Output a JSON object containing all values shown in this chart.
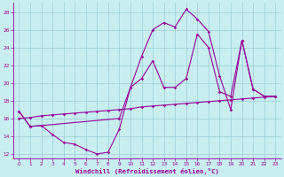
{
  "xlabel": "Windchill (Refroidissement éolien,°C)",
  "background_color": "#c8eef0",
  "grid_color": "#99ccd4",
  "line_color": "#990099",
  "xlim": [
    -0.5,
    23.5
  ],
  "ylim": [
    11.5,
    29
  ],
  "yticks": [
    12,
    14,
    16,
    18,
    20,
    22,
    24,
    26,
    28
  ],
  "xticks": [
    0,
    1,
    2,
    3,
    4,
    5,
    6,
    7,
    8,
    9,
    10,
    11,
    12,
    13,
    14,
    15,
    16,
    17,
    18,
    19,
    20,
    21,
    22,
    23
  ],
  "series1_x": [
    0,
    1,
    2,
    3,
    4,
    5,
    6,
    7,
    8,
    9,
    10,
    11,
    12,
    13,
    14,
    15,
    16,
    17,
    18,
    19,
    20,
    21,
    22,
    23
  ],
  "series1_y": [
    16.8,
    15.1,
    15.2,
    14.2,
    13.3,
    13.1,
    12.5,
    12.0,
    12.2,
    14.8,
    19.5,
    23.0,
    26.0,
    26.8,
    26.3,
    28.3,
    27.2,
    25.8,
    20.8,
    17.0,
    24.8,
    19.3,
    18.5,
    18.5
  ],
  "series2_x": [
    0,
    1,
    2,
    9,
    10,
    11,
    12,
    13,
    14,
    15,
    16,
    17,
    18,
    19,
    20,
    21,
    22,
    23
  ],
  "series2_y": [
    16.8,
    15.1,
    15.2,
    16.0,
    19.5,
    20.5,
    22.5,
    19.5,
    19.5,
    20.5,
    25.5,
    24.0,
    19.0,
    18.5,
    24.8,
    19.3,
    18.5,
    18.5
  ],
  "series3_x": [
    0,
    1,
    2,
    3,
    4,
    5,
    6,
    7,
    8,
    9,
    10,
    11,
    12,
    13,
    14,
    15,
    16,
    17,
    18,
    19,
    20,
    21,
    22,
    23
  ],
  "series3_y": [
    16.0,
    16.1,
    16.3,
    16.4,
    16.5,
    16.6,
    16.7,
    16.8,
    16.9,
    17.0,
    17.1,
    17.3,
    17.4,
    17.5,
    17.6,
    17.7,
    17.8,
    17.9,
    18.0,
    18.1,
    18.2,
    18.3,
    18.4,
    18.5
  ]
}
